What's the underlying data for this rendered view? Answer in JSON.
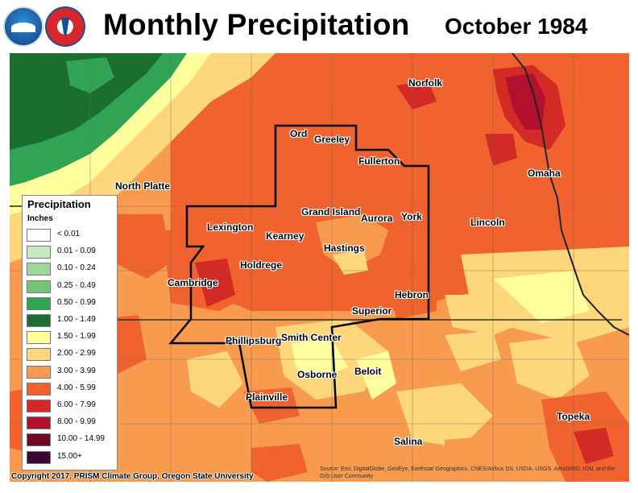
{
  "header": {
    "title": "Monthly Precipitation",
    "date": "October 1984",
    "logos": [
      "noaa-logo",
      "national-weather-service-logo"
    ]
  },
  "legend": {
    "title": "Precipitation",
    "units": "Inches",
    "items": [
      {
        "label": "< 0.01",
        "color": "#ffffff"
      },
      {
        "label": "0.01 - 0.09",
        "color": "#c9e9c2"
      },
      {
        "label": "0.10 - 0.24",
        "color": "#a3d69b"
      },
      {
        "label": "0.25 - 0.49",
        "color": "#74c476"
      },
      {
        "label": "0.50 - 0.99",
        "color": "#31a354"
      },
      {
        "label": "1.00 - 1.49",
        "color": "#1a6e2e"
      },
      {
        "label": "1.50 - 1.99",
        "color": "#ffff9e"
      },
      {
        "label": "2.00 - 2.99",
        "color": "#fdd77a"
      },
      {
        "label": "3.00 - 3.99",
        "color": "#f89b4e"
      },
      {
        "label": "4.00 - 5.99",
        "color": "#f0632e"
      },
      {
        "label": "6.00 - 7.99",
        "color": "#d42a26"
      },
      {
        "label": "8.00 - 9.99",
        "color": "#b1112e"
      },
      {
        "label": "10.00 - 14.99",
        "color": "#6b0a22"
      },
      {
        "label": "15.00+",
        "color": "#3d0533"
      }
    ]
  },
  "cities": [
    {
      "name": "Norfolk"
    },
    {
      "name": "Ord"
    },
    {
      "name": "Greeley"
    },
    {
      "name": "Fullerton"
    },
    {
      "name": "North Platte"
    },
    {
      "name": "Omaha"
    },
    {
      "name": "Grand Island"
    },
    {
      "name": "Aurora"
    },
    {
      "name": "York"
    },
    {
      "name": "Lexington"
    },
    {
      "name": "Lincoln"
    },
    {
      "name": "Kearney"
    },
    {
      "name": "Hastings"
    },
    {
      "name": "Holdrege"
    },
    {
      "name": "Cambridge"
    },
    {
      "name": "Hebron"
    },
    {
      "name": "Superior"
    },
    {
      "name": "Phillipsburg"
    },
    {
      "name": "Smith Center"
    },
    {
      "name": "Osborne"
    },
    {
      "name": "Beloit"
    },
    {
      "name": "Plainville"
    },
    {
      "name": "Topeka"
    },
    {
      "name": "Salina"
    }
  ],
  "footer": {
    "copyright": "Copyright 2017, PRISM Climate Group, Oregon State University",
    "source": "Source: Esri, DigitalGlobe, GeoEye, Earthstar Geographics, CNES/Airbus DS, USDA, USGS, AeroGRID, IGN, and the GIS User Community"
  }
}
